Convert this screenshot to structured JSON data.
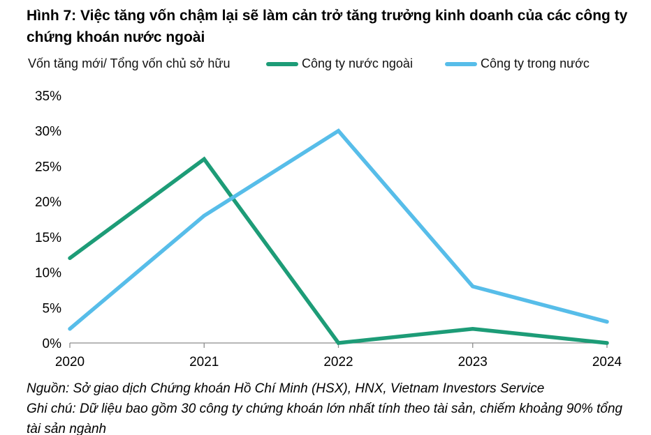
{
  "title": "Hình 7: Việc tăng vốn chậm lại sẽ làm cản trở tăng trưởng kinh doanh của các công ty chứng khoán nước ngoài",
  "axis_title": "Vốn tăng mới/ Tổng vốn chủ sở hữu",
  "footer": {
    "source": "Nguồn:  Sở giao dịch Chứng khoán Hồ Chí Minh (HSX), HNX, Vietnam Investors Service",
    "note": "Ghi chú: Dữ liệu bao gồm 30 công ty chứng khoán lớn nhất tính theo tài sản, chiếm khoảng 90% tổng tài sản ngành"
  },
  "colors": {
    "foreign_green": "#1d9c77",
    "domestic_blue": "#57bde9",
    "axis_gray": "#8c8c8c",
    "text": "#000000"
  },
  "chart_data": {
    "type": "line",
    "title": "Hình 7: Việc tăng vốn chậm lại sẽ làm cản trở tăng trưởng kinh doanh của các công ty chứng khoán nước ngoài",
    "xlabel": "",
    "ylabel": "Vốn tăng mới/ Tổng vốn chủ sở hữu",
    "categories": [
      "2020",
      "2021",
      "2022",
      "2023",
      "2024"
    ],
    "series": [
      {
        "name": "Công ty nước ngoài",
        "color": "#1d9c77",
        "values": [
          12,
          26,
          0,
          2,
          0
        ]
      },
      {
        "name": "Công ty trong nước",
        "color": "#57bde9",
        "values": [
          2,
          18,
          30,
          8,
          3
        ]
      }
    ],
    "ylim": [
      0,
      35
    ],
    "ytick_step": 5,
    "ytick_suffix": "%",
    "grid": false,
    "legend_position": "top"
  }
}
